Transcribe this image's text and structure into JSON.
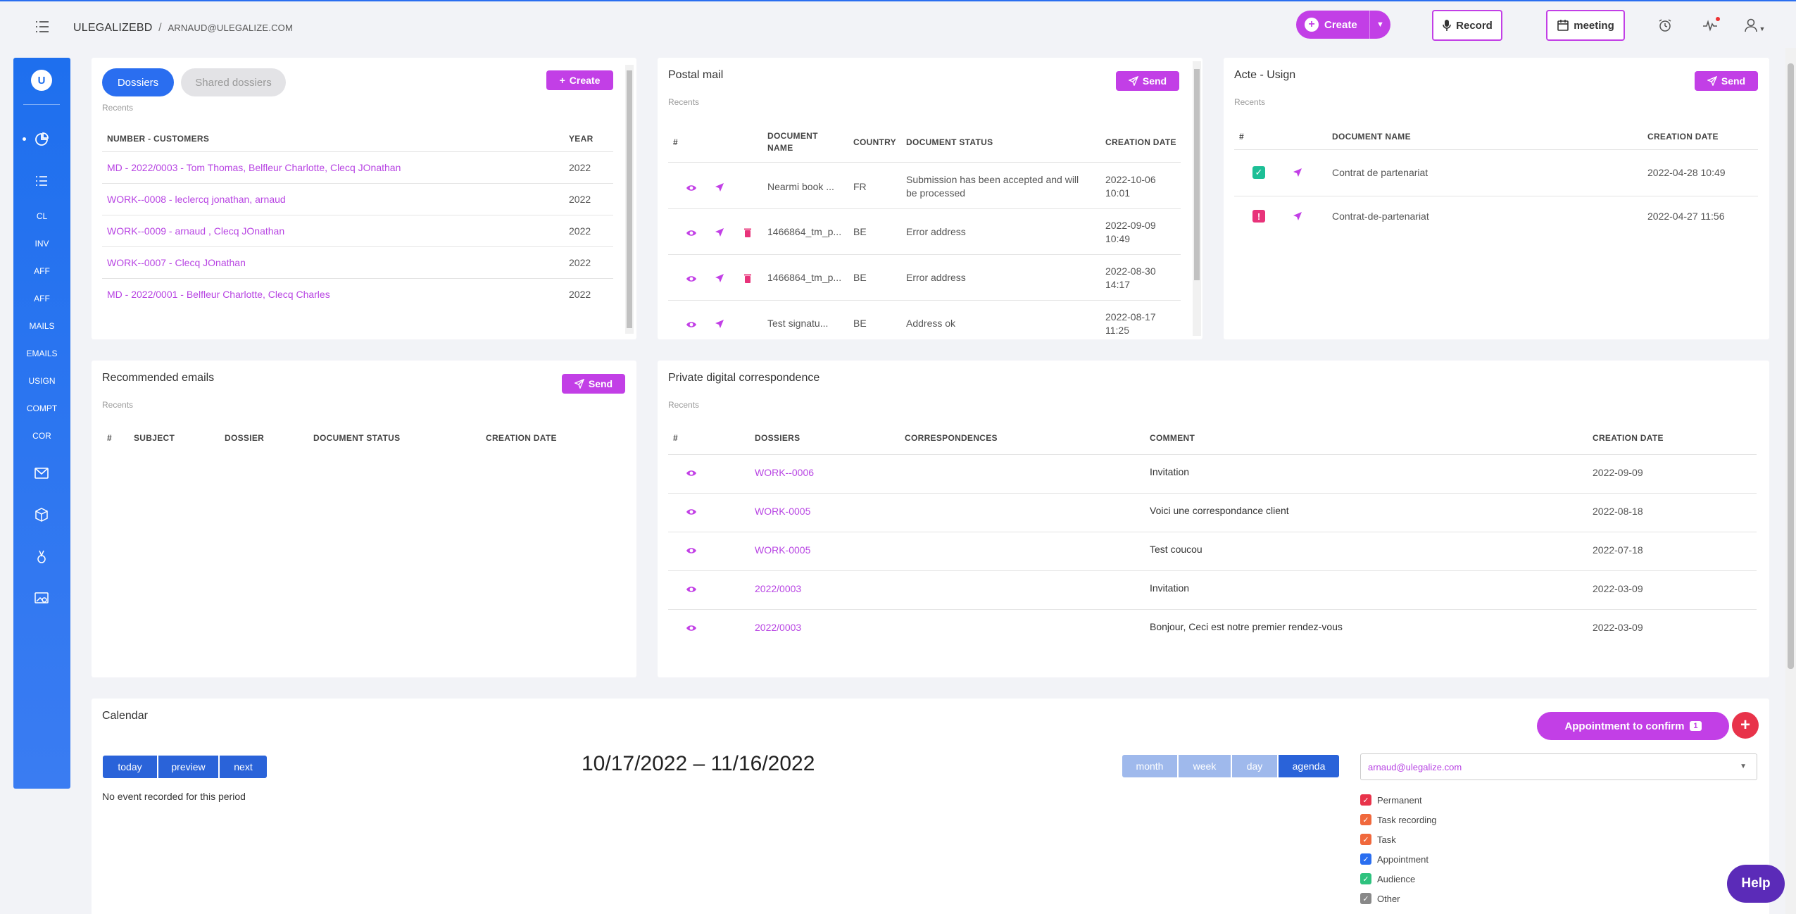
{
  "header": {
    "brand": "ULEGALIZEBD",
    "separator": "/",
    "user": "ARNAUD@ULEGALIZE.COM",
    "create_label": "Create",
    "record_label": "Record",
    "meeting_label": "meeting"
  },
  "sidebar": {
    "logo": "U",
    "items": [
      "CL",
      "INV",
      "AFF",
      "AFF",
      "MAILS",
      "EMAILS",
      "USIGN",
      "COMPT",
      "COR"
    ]
  },
  "dossiers": {
    "tab_active": "Dossiers",
    "tab_inactive": "Shared dossiers",
    "create_label": "Create",
    "recents": "Recents",
    "columns": [
      "NUMBER - CUSTOMERS",
      "YEAR"
    ],
    "rows": [
      {
        "name": "MD - 2022/0003 - Tom Thomas, Belfleur Charlotte, Clecq JOnathan",
        "year": "2022"
      },
      {
        "name": "WORK--0008 - leclercq jonathan, arnaud",
        "year": "2022"
      },
      {
        "name": "WORK--0009 - arnaud , Clecq JOnathan",
        "year": "2022"
      },
      {
        "name": "WORK--0007 - Clecq JOnathan",
        "year": "2022"
      },
      {
        "name": "MD - 2022/0001 - Belfleur Charlotte, Clecq Charles",
        "year": "2022"
      }
    ]
  },
  "postal": {
    "title": "Postal mail",
    "send_label": "Send",
    "recents": "Recents",
    "columns": [
      "#",
      "DOCUMENT",
      "NAME",
      "COUNTRY",
      "DOCUMENT STATUS",
      "CREATION DATE"
    ],
    "rows": [
      {
        "name": "Nearmi book ...",
        "country": "FR",
        "status1": "Submission has been accepted and will",
        "status2": "be processed",
        "date1": "2022-10-06",
        "date2": "10:01"
      },
      {
        "name": "1466864_tm_p...",
        "country": "BE",
        "status1": "Error address",
        "status2": "",
        "date1": "2022-09-09",
        "date2": "10:49"
      },
      {
        "name": "1466864_tm_p...",
        "country": "BE",
        "status1": "Error address",
        "status2": "",
        "date1": "2022-08-30",
        "date2": "14:17"
      },
      {
        "name": "Test signatu...",
        "country": "BE",
        "status1": "Address ok",
        "status2": "",
        "date1": "2022-08-17",
        "date2": "11:25"
      }
    ]
  },
  "usign": {
    "title": "Acte - Usign",
    "send_label": "Send",
    "recents": "Recents",
    "columns": [
      "#",
      "DOCUMENT NAME",
      "CREATION DATE"
    ],
    "rows": [
      {
        "name": "Contrat de partenariat",
        "date": "2022-04-28 10:49"
      },
      {
        "name": "Contrat-de-partenariat",
        "date": "2022-04-27 11:56"
      }
    ]
  },
  "emails": {
    "title": "Recommended emails",
    "send_label": "Send",
    "recents": "Recents",
    "columns": [
      "#",
      "SUBJECT",
      "DOSSIER",
      "DOCUMENT STATUS",
      "CREATION DATE"
    ]
  },
  "private": {
    "title": "Private digital correspondence",
    "recents": "Recents",
    "columns": [
      "#",
      "DOSSIERS",
      "CORRESPONDENCES",
      "COMMENT",
      "CREATION DATE"
    ],
    "rows": [
      {
        "dossier": "WORK--0006",
        "comment": "Invitation",
        "date": "2022-09-09"
      },
      {
        "dossier": "WORK-0005",
        "comment": "Voici une correspondance client",
        "date": "2022-08-18"
      },
      {
        "dossier": "WORK-0005",
        "comment": "Test coucou",
        "date": "2022-07-18"
      },
      {
        "dossier": "2022/0003",
        "comment": "Invitation",
        "date": "2022-03-09"
      },
      {
        "dossier": "2022/0003",
        "comment": "Bonjour, Ceci est notre premier rendez-vous",
        "date": "2022-03-09"
      }
    ]
  },
  "calendar": {
    "title": "Calendar",
    "appointment_label": "Appointment to confirm",
    "appointment_count": "1",
    "today": "today",
    "preview": "preview",
    "next": "next",
    "range": "10/17/2022 – 11/16/2022",
    "views": [
      "month",
      "week",
      "day",
      "agenda"
    ],
    "empty": "No event recorded for this period",
    "email_select": "arnaud@ulegalize.com",
    "legend": [
      {
        "label": "Permanent",
        "color": "#e8334a"
      },
      {
        "label": "Task recording",
        "color": "#f0683c"
      },
      {
        "label": "Task",
        "color": "#f0683c"
      },
      {
        "label": "Appointment",
        "color": "#2a6ef0"
      },
      {
        "label": "Audience",
        "color": "#2ec27e"
      },
      {
        "label": "Other",
        "color": "#888888"
      }
    ]
  },
  "help_label": "Help"
}
